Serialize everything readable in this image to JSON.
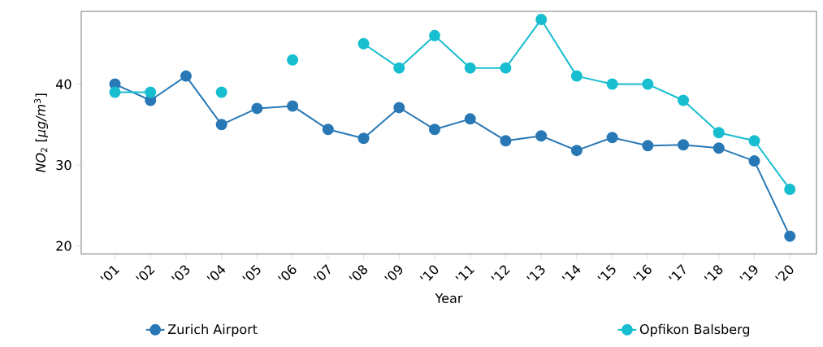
{
  "chart_data": {
    "type": "line",
    "xlabel": "Year",
    "ylabel": "*NO*$_{2}$  [*μg/m*$^{3}$]",
    "categories": [
      "'01",
      "'02",
      "'03",
      "'04",
      "'05",
      "'06",
      "'07",
      "'08",
      "'09",
      "'10",
      "'11",
      "'12",
      "'13",
      "'14",
      "'15",
      "'16",
      "'17",
      "'18",
      "'19",
      "'20"
    ],
    "series": [
      {
        "name": "Zurich Airport",
        "color": "#2878b5",
        "values": [
          40,
          38,
          41,
          35,
          37,
          37.3,
          34.4,
          33.3,
          37.1,
          34.4,
          35.7,
          33,
          33.6,
          31.8,
          33.4,
          32.4,
          32.5,
          32.1,
          30.5,
          21.2
        ]
      },
      {
        "name": "Opfikon Balsberg",
        "color": "#17becf",
        "values": [
          39,
          39,
          null,
          39,
          null,
          43,
          null,
          45,
          42,
          46,
          42,
          42,
          48,
          41,
          40,
          40,
          38,
          34,
          33,
          27
        ]
      }
    ],
    "ylim": [
      19,
      49
    ],
    "yticks": [
      20,
      30,
      40
    ],
    "grid": false,
    "legend": "bottom",
    "marker": "circle",
    "line_style": "solid"
  }
}
